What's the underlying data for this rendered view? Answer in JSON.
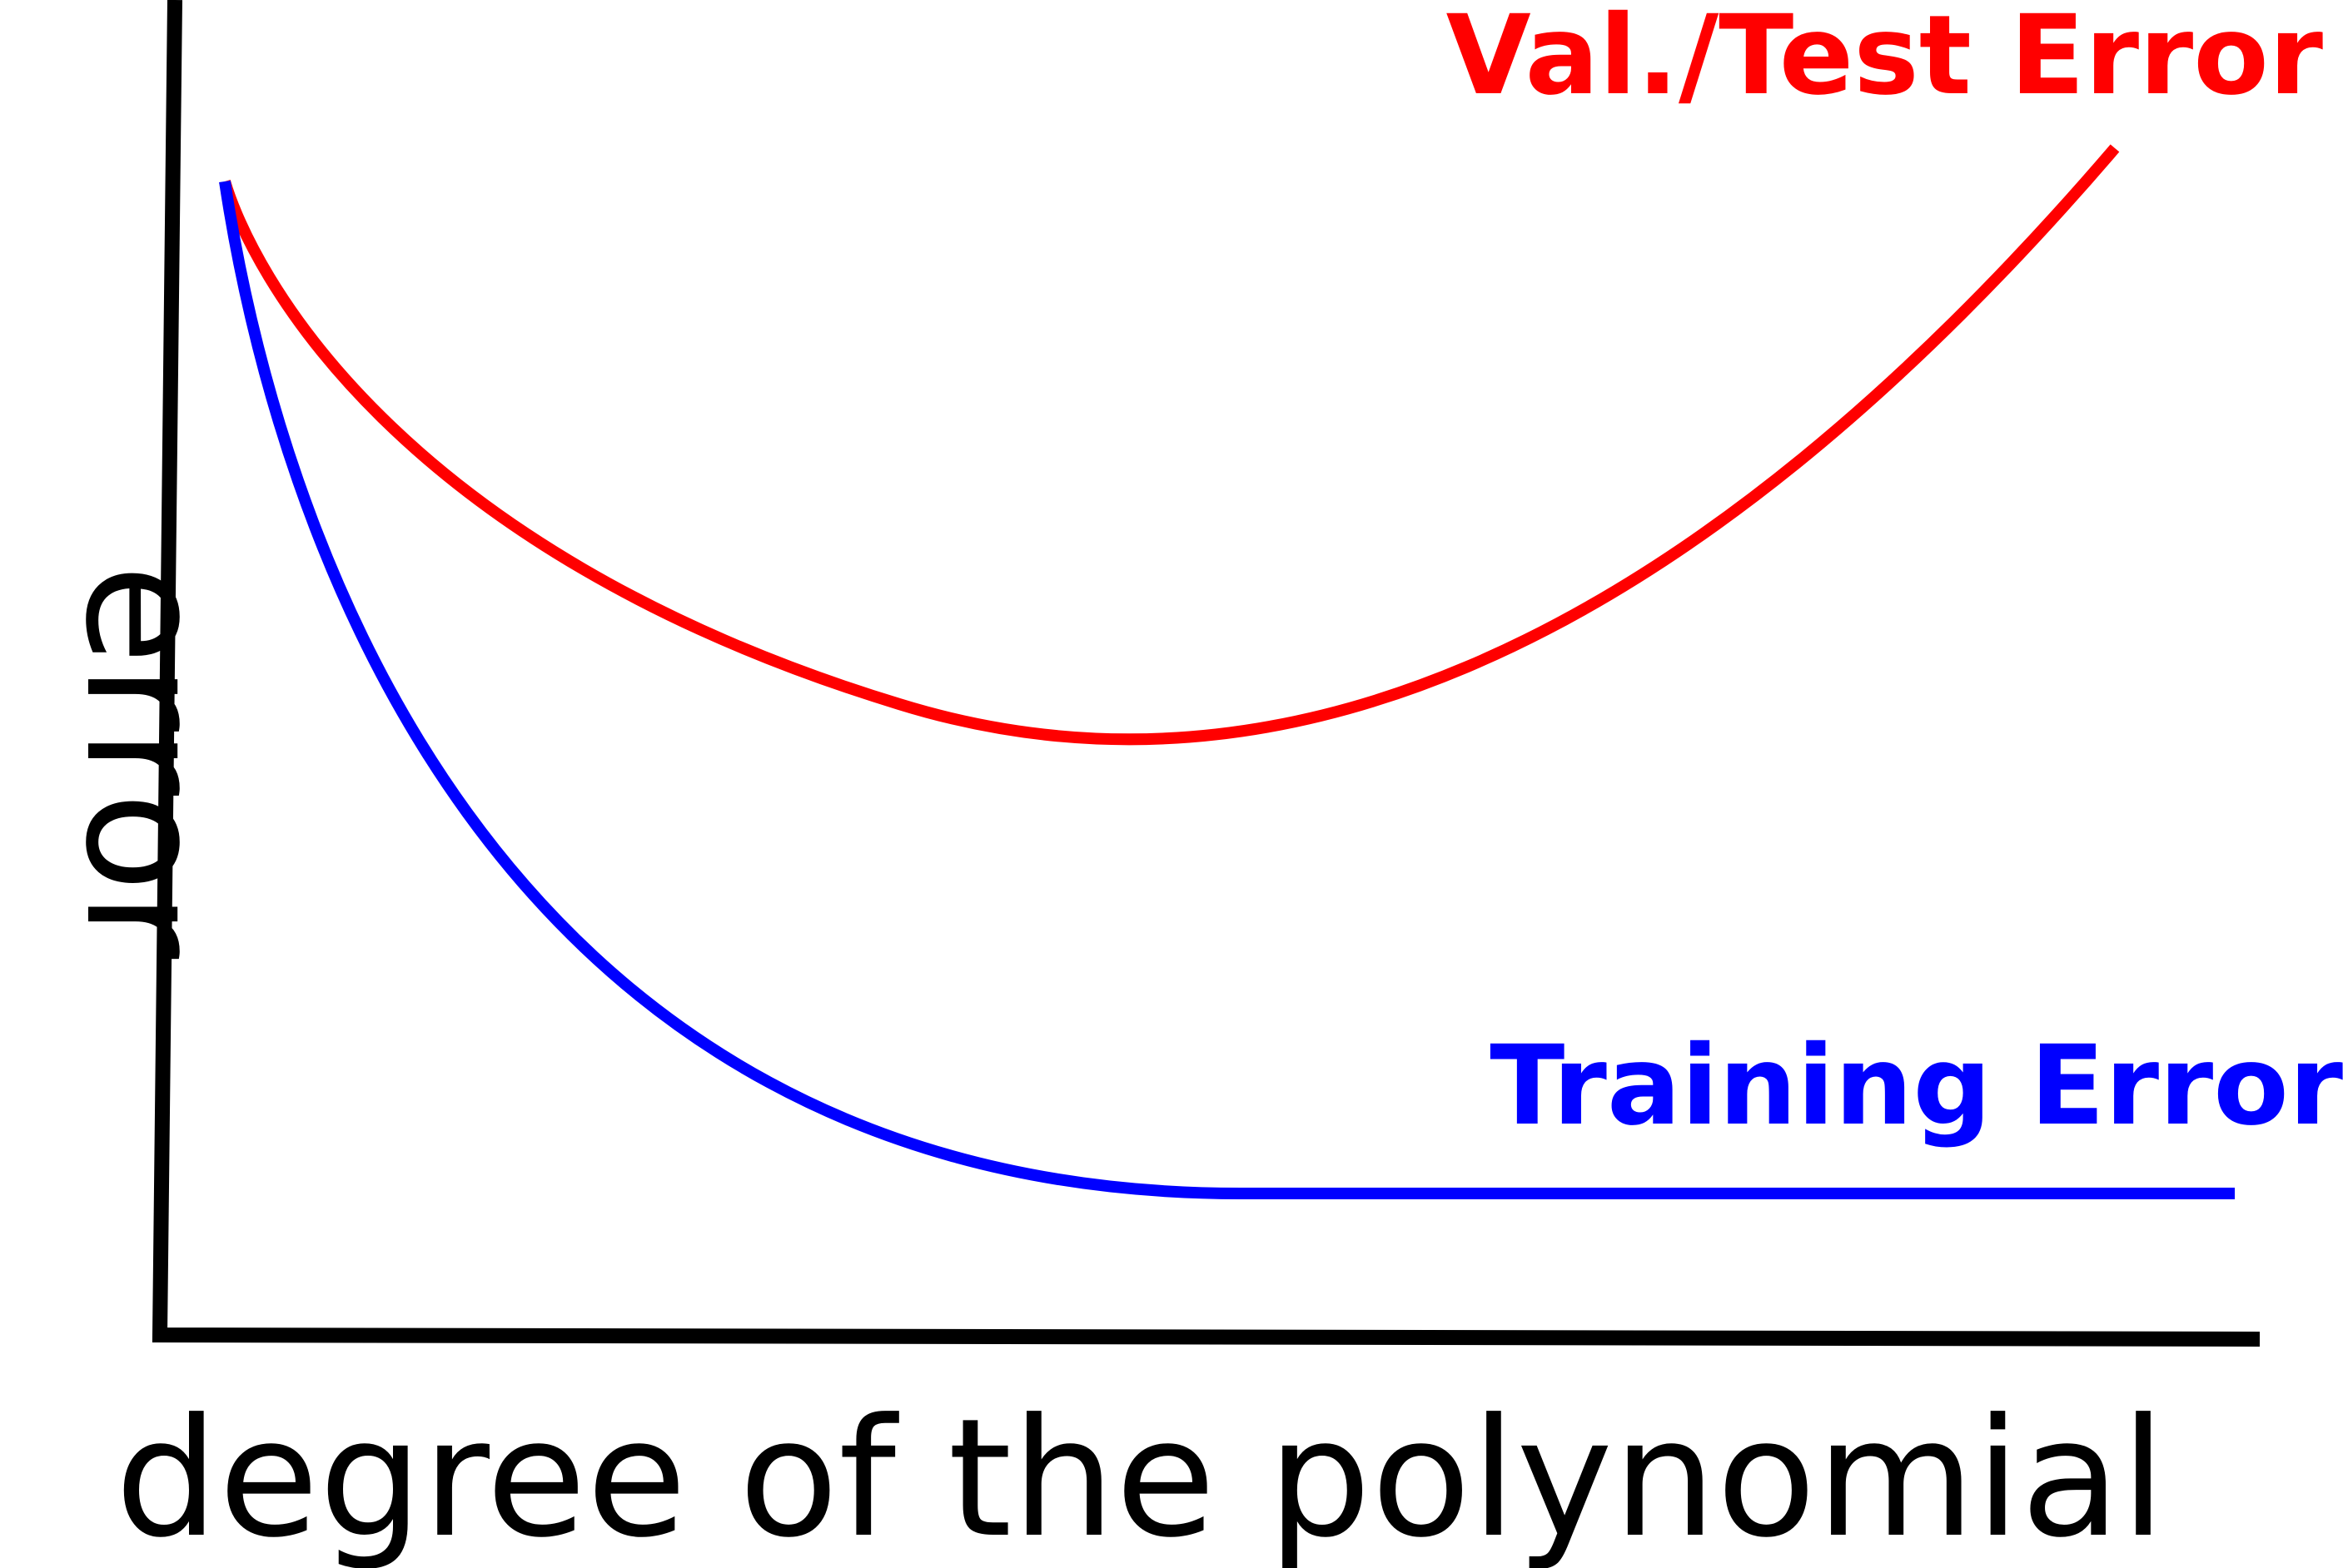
{
  "axes": {
    "x_label": "degree of the polynomial",
    "y_label": "error"
  },
  "curves": {
    "validation": {
      "label": "Val./Test Error",
      "color": "#ff0000"
    },
    "training": {
      "label": "Training Error",
      "color": "#0000ff"
    }
  },
  "colors": {
    "axis": "#000000",
    "background": "#ffffff"
  }
}
